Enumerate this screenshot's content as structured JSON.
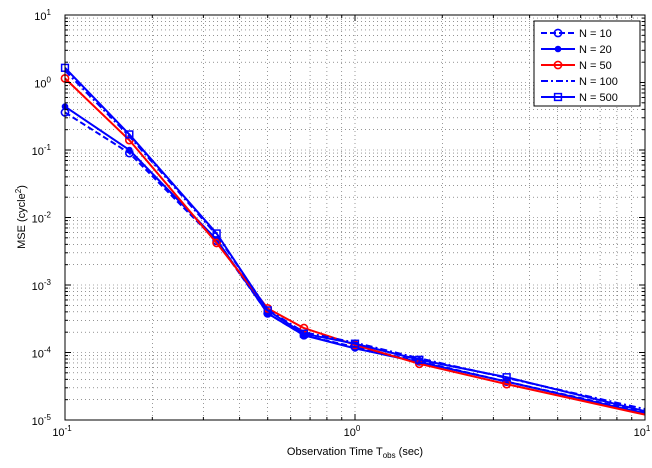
{
  "chart_data": {
    "type": "line",
    "xscale": "log",
    "yscale": "log",
    "xlim": [
      0.1,
      10
    ],
    "ylim": [
      1e-05,
      10
    ],
    "grid": true,
    "legend_position": "top-right",
    "xlabel": {
      "main": "Observation Time T",
      "sub": "obs",
      "tail": " (sec)"
    },
    "ylabel": {
      "main": "MSE (cycle",
      "sup": "2",
      "tail": ")"
    },
    "x_ticks": [
      {
        "base": "10",
        "exp": "-1"
      },
      {
        "base": "10",
        "exp": "0"
      },
      {
        "base": "10",
        "exp": "1"
      }
    ],
    "y_ticks": [
      {
        "base": "10",
        "exp": "-5"
      },
      {
        "base": "10",
        "exp": "-4"
      },
      {
        "base": "10",
        "exp": "-3"
      },
      {
        "base": "10",
        "exp": "-2"
      },
      {
        "base": "10",
        "exp": "-1"
      },
      {
        "base": "10",
        "exp": "0"
      },
      {
        "base": "10",
        "exp": "1"
      }
    ],
    "series": [
      {
        "name": "N = 10",
        "color": "#0000ff",
        "dash": "dashed",
        "marker": "circle",
        "x": [
          0.1,
          0.1667,
          0.3333,
          0.5,
          0.6667,
          1.0,
          1.6667,
          3.3333,
          10
        ],
        "y": [
          0.36,
          0.09,
          0.0045,
          0.00038,
          0.00018,
          0.00012,
          7.4e-05,
          3.7e-05,
          1.3e-05
        ]
      },
      {
        "name": "N = 20",
        "color": "#0000ff",
        "dash": "solid",
        "marker": "dot",
        "x": [
          0.1,
          0.1667,
          0.3333,
          0.5,
          0.6667,
          1.0,
          1.6667,
          3.3333,
          10
        ],
        "y": [
          0.44,
          0.1,
          0.0047,
          0.00038,
          0.00018,
          0.000115,
          7.2e-05,
          3.7e-05,
          1.25e-05
        ]
      },
      {
        "name": "N = 50",
        "color": "#ff0000",
        "dash": "solid",
        "marker": "circle",
        "x": [
          0.1,
          0.1667,
          0.3333,
          0.5,
          0.6667,
          1.0,
          1.6667,
          3.3333,
          10
        ],
        "y": [
          1.15,
          0.14,
          0.0042,
          0.00045,
          0.00023,
          0.00013,
          6.8e-05,
          3.4e-05,
          1.2e-05
        ]
      },
      {
        "name": "N = 100",
        "color": "#0000ff",
        "dash": "dashdot",
        "marker": "none",
        "x": [
          0.1,
          0.1667,
          0.3333,
          0.5,
          0.6667,
          1.0,
          1.6667,
          3.3333,
          10
        ],
        "y": [
          1.5,
          0.16,
          0.0055,
          0.00043,
          0.0002,
          0.00014,
          8.2e-05,
          4.2e-05,
          1.45e-05
        ]
      },
      {
        "name": "N = 500",
        "color": "#0000ff",
        "dash": "solid",
        "marker": "square",
        "x": [
          0.1,
          0.1667,
          0.3333,
          0.5,
          0.6667,
          1.0,
          1.6667,
          3.3333,
          10
        ],
        "y": [
          1.65,
          0.17,
          0.0058,
          0.00042,
          0.00019,
          0.000135,
          7.8e-05,
          4.3e-05,
          1.35e-05
        ]
      }
    ]
  }
}
